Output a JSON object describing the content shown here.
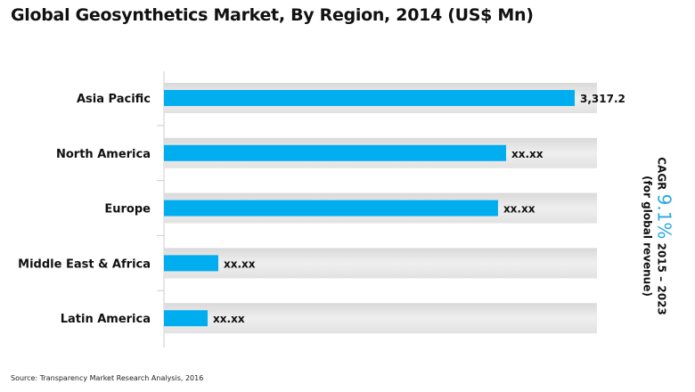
{
  "chart_data": {
    "type": "bar",
    "orientation": "horizontal",
    "title": "Global Geosynthetics Market, By Region, 2014 (US$ Mn)",
    "categories": [
      "Asia Pacific",
      "North America",
      "Europe",
      "Middle East & Africa",
      "Latin America"
    ],
    "values": [
      3317.2,
      2763,
      2698,
      439,
      353
    ],
    "data_labels": [
      "3,317.2",
      "xx.xx",
      "xx.xx",
      "xx.xx",
      "xx.xx"
    ],
    "xlim": [
      0,
      3317.2
    ],
    "grid": false,
    "bar_color": "#00AEEF",
    "band_color": "#e8e8e8",
    "source": "Source: Transparency Market Research Analysis, 2016",
    "annotation": {
      "prefix": "CAGR",
      "value": "9.1%",
      "period": "2015 – 2023",
      "note": "(for global revenue)",
      "accent": "#29a8e0"
    }
  }
}
